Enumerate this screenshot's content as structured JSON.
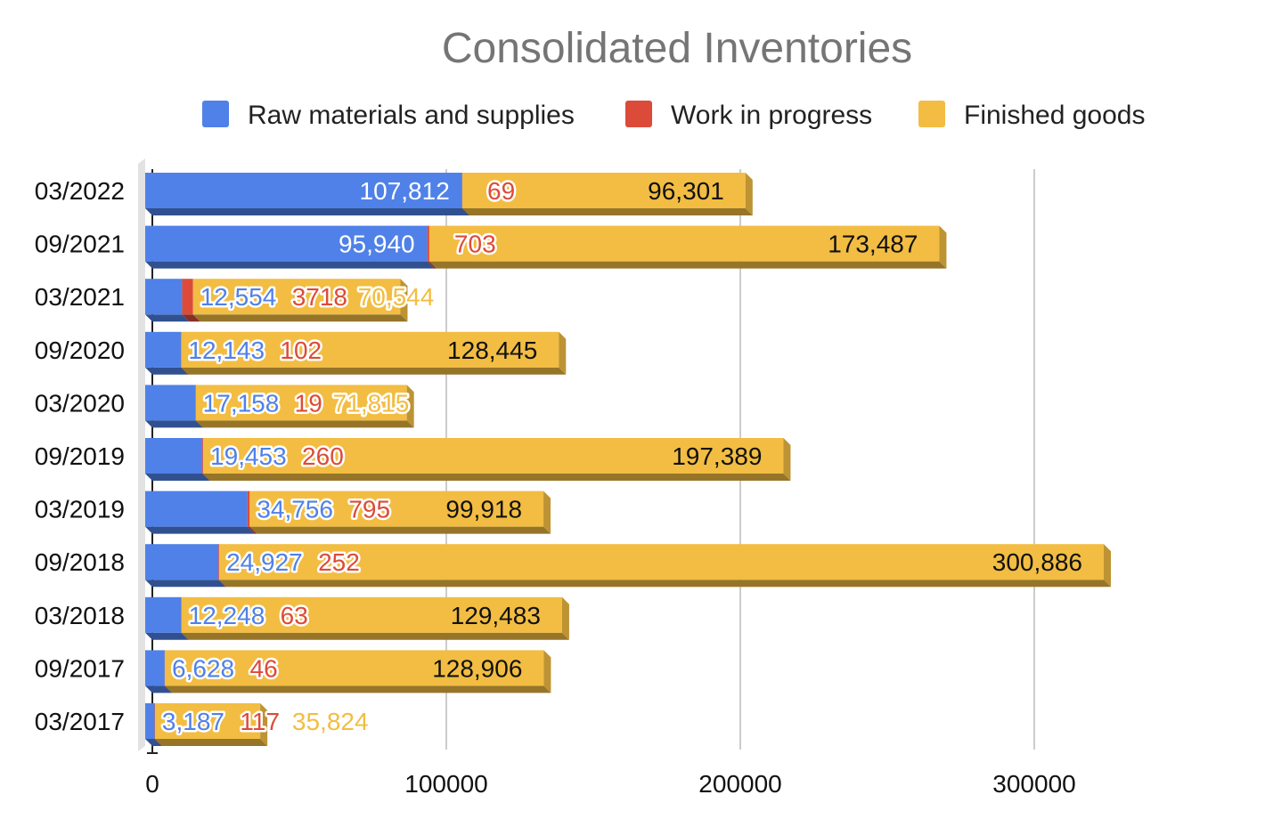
{
  "chart_data": {
    "type": "bar",
    "orientation": "horizontal",
    "stacked": true,
    "style": "3d",
    "title": "Consolidated Inventories",
    "xlabel": "",
    "ylabel": "",
    "xlim": [
      0,
      360000
    ],
    "x_ticks": [
      "0",
      "100000",
      "200000",
      "300000"
    ],
    "x_tick_values": [
      0,
      100000,
      200000,
      300000
    ],
    "grid": true,
    "legend_position": "top",
    "categories": [
      "03/2022",
      "09/2021",
      "03/2021",
      "09/2020",
      "03/2020",
      "09/2019",
      "03/2019",
      "09/2018",
      "03/2018",
      "09/2017",
      "03/2017"
    ],
    "series": [
      {
        "name": "Raw materials and supplies",
        "color": "#4f81e8",
        "values": [
          107812,
          95940,
          12554,
          12143,
          17158,
          19453,
          34756,
          24927,
          12248,
          6628,
          3187
        ],
        "labels": [
          "107,812",
          "95,940",
          "12,554",
          "12,143",
          "17,158",
          "19,453",
          "34,756",
          "24,927",
          "12,248",
          "6,628",
          "3,187"
        ]
      },
      {
        "name": "Work in progress",
        "color": "#dc4b3a",
        "values": [
          69,
          703,
          3718,
          102,
          19,
          260,
          795,
          252,
          63,
          46,
          117
        ],
        "labels": [
          "69",
          "703",
          "3718",
          "102",
          "19",
          "260",
          "795",
          "252",
          "63",
          "46",
          "117"
        ]
      },
      {
        "name": "Finished goods",
        "color": "#f2bd42",
        "values": [
          96301,
          173487,
          70544,
          128445,
          71815,
          197389,
          99918,
          300886,
          129483,
          128906,
          35824
        ],
        "labels": [
          "96,301",
          "173,487",
          "70,544",
          "128,445",
          "71,815",
          "197,389",
          "99,918",
          "300,886",
          "129,483",
          "128,906",
          "35,824"
        ]
      }
    ]
  }
}
